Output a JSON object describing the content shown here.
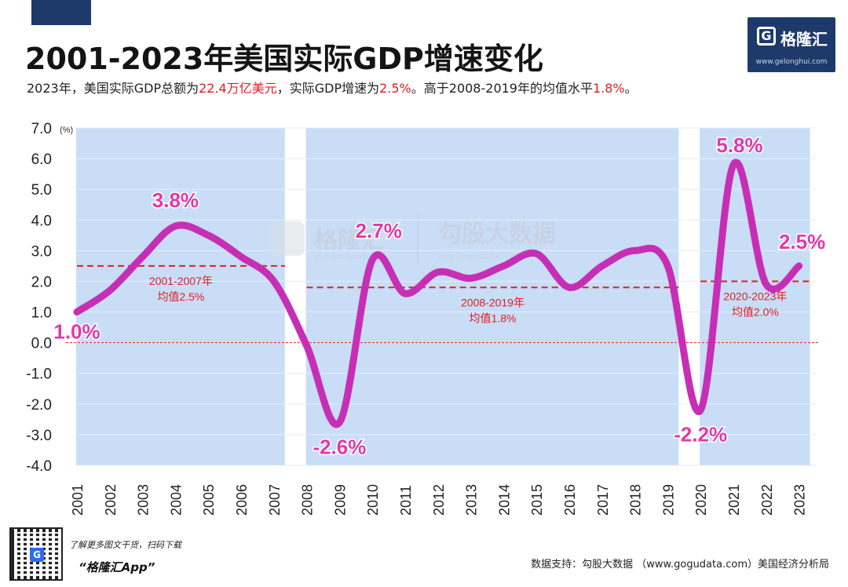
{
  "header": {
    "title": "2001-2023年美国实际GDP增速变化",
    "subtitle_parts": [
      {
        "text": "2023年，美国实际GDP总额为",
        "highlight": false
      },
      {
        "text": "22.4万亿美元",
        "highlight": true
      },
      {
        "text": "，实际GDP增速为",
        "highlight": false
      },
      {
        "text": "2.5%",
        "highlight": true
      },
      {
        "text": "。高于2008-2019年的均值水平",
        "highlight": false
      },
      {
        "text": "1.8%",
        "highlight": true
      },
      {
        "text": "。",
        "highlight": false
      }
    ]
  },
  "logo": {
    "mark": "G",
    "name": "格隆汇",
    "url": "www.gelonghui.com"
  },
  "watermark": {
    "brand": "格隆汇",
    "brand_url": "www.gelonghui.com",
    "partner": "勾股大数据",
    "partner_url": "www.gogudata.com"
  },
  "colors": {
    "line": "#c62fb5",
    "label": "#e03aa8",
    "band": "#c9ddf7",
    "average": "#e02020",
    "zero": "#e02020",
    "axis_text": "#222222"
  },
  "chart_data": {
    "type": "line",
    "title": "2001-2023年美国实际GDP增速变化",
    "unit_label": "(%)",
    "categories": [
      "2001",
      "2002",
      "2003",
      "2004",
      "2005",
      "2006",
      "2007",
      "2008",
      "2009",
      "2010",
      "2011",
      "2012",
      "2013",
      "2014",
      "2015",
      "2016",
      "2017",
      "2018",
      "2019",
      "2020",
      "2021",
      "2022",
      "2023"
    ],
    "series": [
      {
        "name": "美国实际GDP增速",
        "values": [
          1.0,
          1.7,
          2.8,
          3.8,
          3.5,
          2.8,
          2.0,
          -0.1,
          -2.6,
          2.7,
          1.6,
          2.3,
          2.1,
          2.5,
          2.9,
          1.8,
          2.5,
          3.0,
          2.5,
          -2.2,
          5.8,
          1.9,
          2.5
        ]
      }
    ],
    "ylim": [
      -4.0,
      7.0
    ],
    "yticks": [
      "7.0",
      "6.0",
      "5.0",
      "4.0",
      "3.0",
      "2.0",
      "1.0",
      "0.0",
      "-1.0",
      "-2.0",
      "-3.0",
      "-4.0"
    ],
    "ytick_values": [
      7,
      6,
      5,
      4,
      3,
      2,
      1,
      0,
      -1,
      -2,
      -3,
      -4
    ],
    "grid": true,
    "period_bands": [
      {
        "start": "2001",
        "end": "2007"
      },
      {
        "start": "2008",
        "end": "2019"
      },
      {
        "start": "2020",
        "end": "2023"
      }
    ],
    "averages": [
      {
        "start": "2001",
        "end": "2007",
        "value": 2.5,
        "label_line1": "2001-2007年",
        "label_line2": "均值2.5%"
      },
      {
        "start": "2008",
        "end": "2019",
        "value": 1.8,
        "label_line1": "2008-2019年",
        "label_line2": "均值1.8%"
      },
      {
        "start": "2020",
        "end": "2023",
        "value": 2.0,
        "label_line1": "2020-2023年",
        "label_line2": "均值2.0%"
      }
    ],
    "data_labels": [
      {
        "year": "2001",
        "text": "1.0%"
      },
      {
        "year": "2004",
        "text": "3.8%"
      },
      {
        "year": "2009",
        "text": "-2.6%"
      },
      {
        "year": "2010",
        "text": "2.7%"
      },
      {
        "year": "2020",
        "text": "-2.2%"
      },
      {
        "year": "2021",
        "text": "5.8%"
      },
      {
        "year": "2023",
        "text": "2.5%"
      }
    ]
  },
  "footer": {
    "qr_mark": "G",
    "promo": "了解更多图文干货，扫码下载",
    "app_name": "“格隆汇App”",
    "source": "数据支持：勾股大数据 （www.gogudata.com）美国经济分析局"
  }
}
